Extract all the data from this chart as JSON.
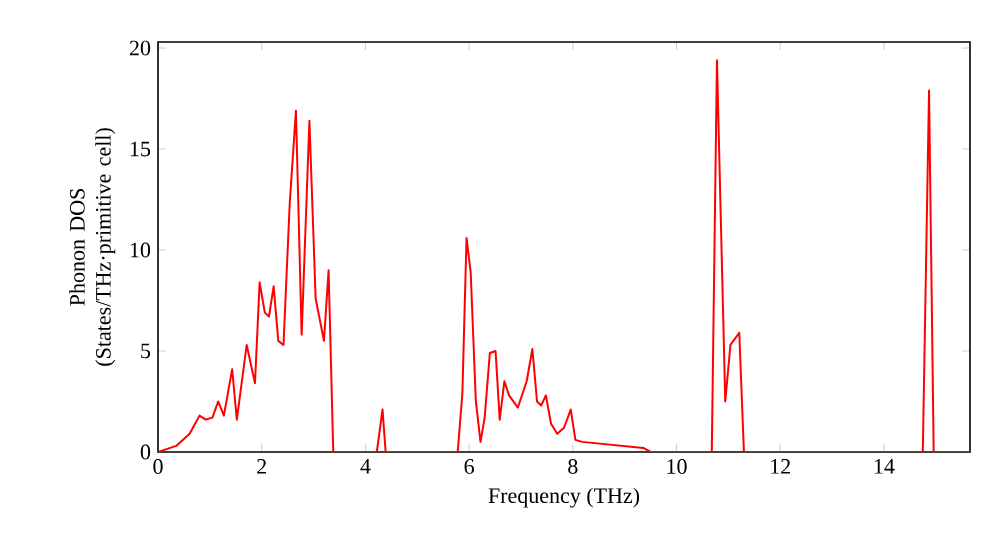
{
  "chart_data": {
    "type": "line",
    "xlabel": "Frequency (THz)",
    "ylabel": "Phonon DOS (States/THz·primitive cell)",
    "x": [
      0,
      0.35,
      0.61,
      0.8,
      0.92,
      1.05,
      1.16,
      1.27,
      1.43,
      1.52,
      1.71,
      1.87,
      1.96,
      2.06,
      2.14,
      2.23,
      2.32,
      2.42,
      2.54,
      2.66,
      2.77,
      2.92,
      3.04,
      3.2,
      3.29,
      3.38,
      4.22,
      4.33,
      4.39,
      5.78,
      5.87,
      5.95,
      6.03,
      6.13,
      6.22,
      6.3,
      6.4,
      6.51,
      6.59,
      6.68,
      6.77,
      6.94,
      7.11,
      7.22,
      7.31,
      7.39,
      7.48,
      7.58,
      7.7,
      7.83,
      7.96,
      8.05,
      8.18,
      9.36,
      9.5,
      10.68,
      10.78,
      10.94,
      11.04,
      11.21,
      11.3,
      14.75,
      14.87,
      14.96,
      15.66
    ],
    "series": [
      {
        "color": "#ff0000",
        "values": [
          0,
          0.3,
          0.9,
          1.8,
          1.6,
          1.7,
          2.5,
          1.8,
          4.1,
          1.6,
          5.3,
          3.4,
          8.4,
          6.9,
          6.7,
          8.2,
          5.5,
          5.3,
          12.3,
          16.9,
          5.8,
          16.4,
          7.6,
          5.5,
          9.0,
          0,
          0,
          2.1,
          0,
          0,
          2.9,
          10.6,
          8.9,
          2.5,
          0.5,
          1.7,
          4.9,
          5.0,
          1.6,
          3.5,
          2.8,
          2.2,
          3.5,
          5.1,
          2.5,
          2.3,
          2.8,
          1.4,
          0.9,
          1.2,
          2.1,
          0.6,
          0.5,
          0.2,
          0,
          0,
          19.4,
          2.5,
          5.3,
          5.9,
          0,
          0,
          17.9,
          0,
          0
        ]
      }
    ],
    "xlim": [
      0,
      15.66
    ],
    "ylim": [
      0,
      20.3
    ],
    "xticks": [
      0,
      2,
      4,
      6,
      8,
      10,
      12,
      14
    ],
    "yticks": [
      0,
      5,
      10,
      15,
      20
    ],
    "grid": false,
    "marker": "none",
    "line_style": "solid"
  }
}
